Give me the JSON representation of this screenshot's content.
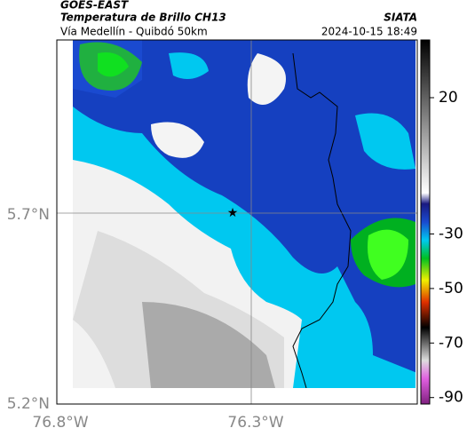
{
  "header": {
    "satellite": "GOES-EAST",
    "title": "Temperatura de Brillo CH13",
    "subtitle": "Vía Medellín - Quibdó 50km",
    "source": "SIATA",
    "datetime": "2024-10-15 18:49"
  },
  "map": {
    "lat_ticks": [
      "5.7°N",
      "5.2°N"
    ],
    "lon_ticks": [
      "76.8°W",
      "76.3°W"
    ]
  },
  "colorbar": {
    "ticks": [
      20,
      -30,
      -50,
      -70,
      -90
    ]
  }
}
